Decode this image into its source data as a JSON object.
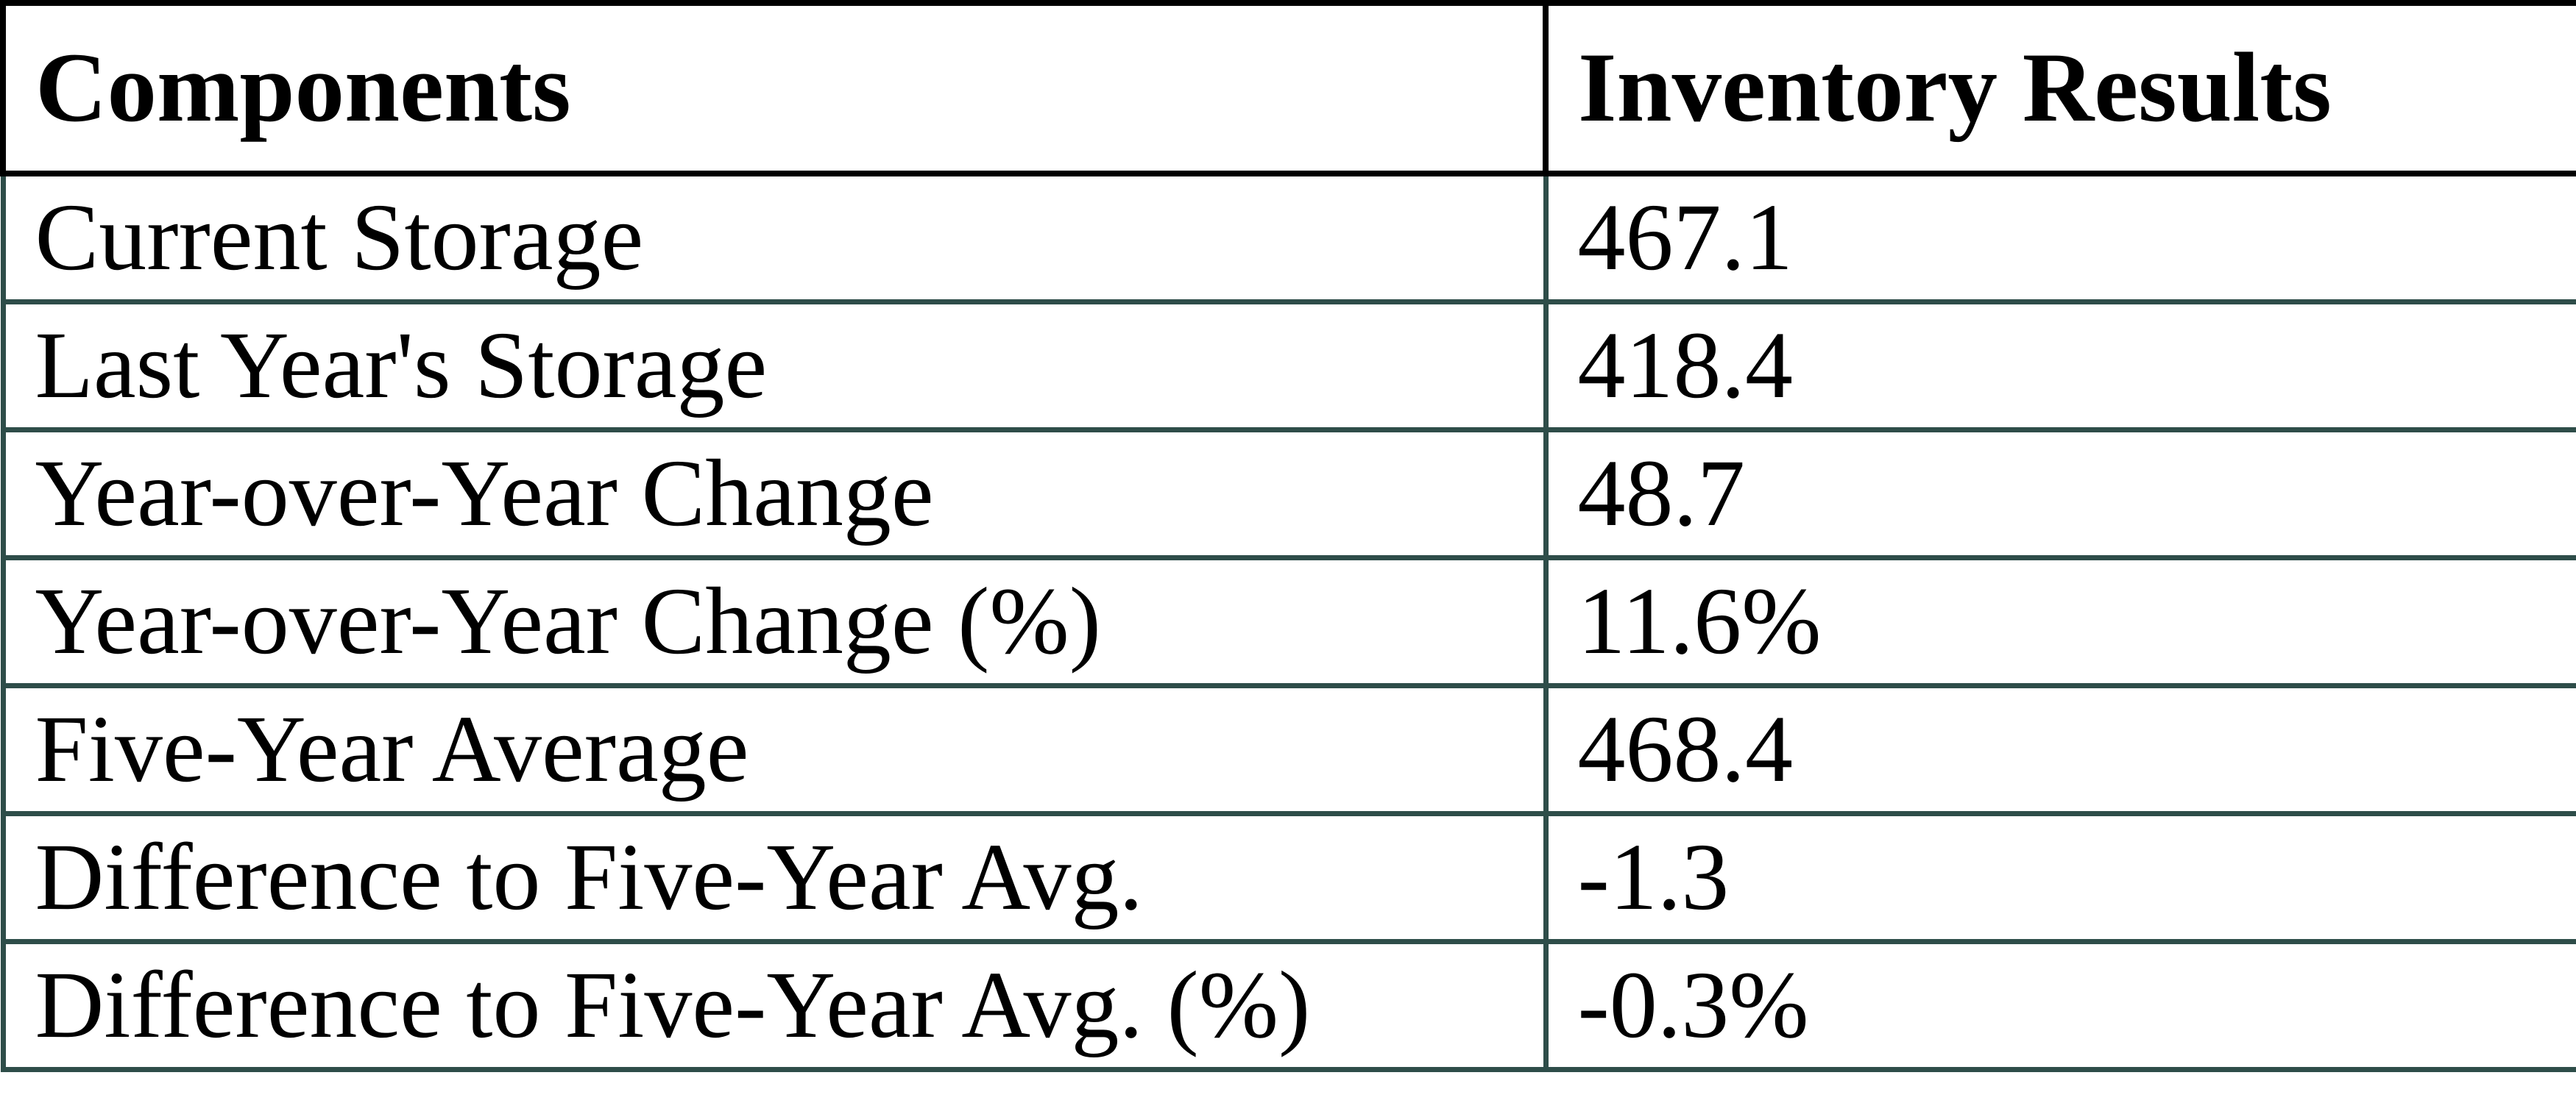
{
  "colors": {
    "header_border": "#000000",
    "body_border": "#2e4d49",
    "bg": "#ffffff",
    "text": "#000000"
  },
  "chart_data": {
    "type": "table",
    "columns": [
      "Components",
      "Inventory Results"
    ],
    "rows": [
      [
        "Current Storage",
        "467.1"
      ],
      [
        "Last Year's Storage",
        "418.4"
      ],
      [
        "Year-over-Year Change",
        "48.7"
      ],
      [
        "Year-over-Year Change (%)",
        "11.6%"
      ],
      [
        "Five-Year Average",
        "468.4"
      ],
      [
        "Difference to Five-Year Avg.",
        "-1.3"
      ],
      [
        "Difference to Five-Year Avg. (%)",
        "-0.3%"
      ]
    ]
  }
}
